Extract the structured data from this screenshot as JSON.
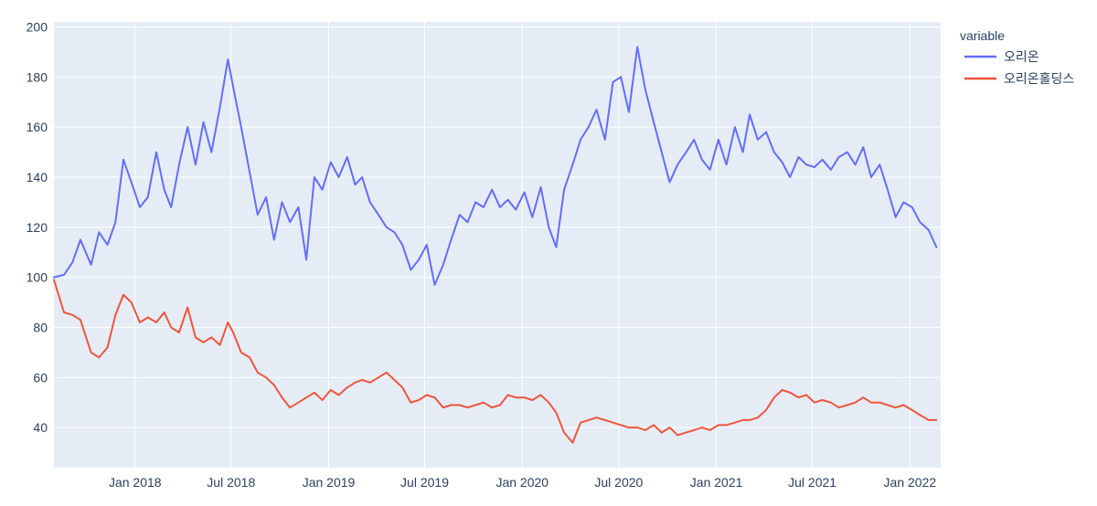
{
  "chart_data": {
    "type": "line",
    "title": "",
    "xlabel": "",
    "ylabel": "",
    "ylim": [
      24,
      202
    ],
    "y_ticks": [
      40,
      60,
      80,
      100,
      120,
      140,
      160,
      180,
      200
    ],
    "y_tick_labels": [
      "40",
      "60",
      "80",
      "100",
      "120",
      "140",
      "160",
      "180",
      "200"
    ],
    "x_range": [
      "2017-08-01",
      "2022-02-28"
    ],
    "x_ticks": [
      "2018-01-01",
      "2018-07-01",
      "2019-01-01",
      "2019-07-01",
      "2020-01-01",
      "2020-07-01",
      "2021-01-01",
      "2021-07-01",
      "2022-01-01"
    ],
    "x_tick_labels": [
      "Jan 2018",
      "Jul 2018",
      "Jan 2019",
      "Jul 2019",
      "Jan 2020",
      "Jul 2020",
      "Jan 2021",
      "Jul 2021",
      "Jan 2022"
    ],
    "grid": true,
    "legend": {
      "title": "variable",
      "placement": "right"
    },
    "colors": {
      "plot_bg": "#e5ecf6",
      "grid": "#ffffff",
      "text": "#2a3f5f"
    },
    "series": [
      {
        "name": "오리온",
        "color": "#636efa",
        "x": [
          "2017-08-01",
          "2017-08-20",
          "2017-09-05",
          "2017-09-20",
          "2017-10-10",
          "2017-10-25",
          "2017-11-10",
          "2017-11-25",
          "2017-12-10",
          "2017-12-25",
          "2018-01-10",
          "2018-01-25",
          "2018-02-10",
          "2018-02-25",
          "2018-03-10",
          "2018-03-25",
          "2018-04-10",
          "2018-04-25",
          "2018-05-10",
          "2018-05-25",
          "2018-06-10",
          "2018-06-25",
          "2018-07-05",
          "2018-07-20",
          "2018-08-05",
          "2018-08-20",
          "2018-09-05",
          "2018-09-20",
          "2018-10-05",
          "2018-10-20",
          "2018-11-05",
          "2018-11-20",
          "2018-12-05",
          "2018-12-20",
          "2019-01-05",
          "2019-01-20",
          "2019-02-05",
          "2019-02-20",
          "2019-03-05",
          "2019-03-20",
          "2019-04-05",
          "2019-04-20",
          "2019-05-05",
          "2019-05-20",
          "2019-06-05",
          "2019-06-20",
          "2019-07-05",
          "2019-07-20",
          "2019-08-05",
          "2019-08-20",
          "2019-09-05",
          "2019-09-20",
          "2019-10-05",
          "2019-10-20",
          "2019-11-05",
          "2019-11-20",
          "2019-12-05",
          "2019-12-20",
          "2020-01-05",
          "2020-01-20",
          "2020-02-05",
          "2020-02-20",
          "2020-03-05",
          "2020-03-20",
          "2020-04-05",
          "2020-04-20",
          "2020-05-05",
          "2020-05-20",
          "2020-06-05",
          "2020-06-20",
          "2020-07-05",
          "2020-07-20",
          "2020-08-05",
          "2020-08-20",
          "2020-09-05",
          "2020-09-20",
          "2020-10-05",
          "2020-10-20",
          "2020-11-05",
          "2020-11-20",
          "2020-12-05",
          "2020-12-20",
          "2021-01-05",
          "2021-01-20",
          "2021-02-05",
          "2021-02-20",
          "2021-03-05",
          "2021-03-20",
          "2021-04-05",
          "2021-04-20",
          "2021-05-05",
          "2021-05-20",
          "2021-06-05",
          "2021-06-20",
          "2021-07-05",
          "2021-07-20",
          "2021-08-05",
          "2021-08-20",
          "2021-09-05",
          "2021-09-20",
          "2021-10-05",
          "2021-10-20",
          "2021-11-05",
          "2021-11-20",
          "2021-12-05",
          "2021-12-20",
          "2022-01-05",
          "2022-01-20",
          "2022-02-05",
          "2022-02-20"
        ],
        "values": [
          100,
          101,
          106,
          115,
          105,
          118,
          113,
          122,
          147,
          138,
          128,
          132,
          150,
          135,
          128,
          145,
          160,
          145,
          162,
          150,
          168,
          187,
          176,
          160,
          142,
          125,
          132,
          115,
          130,
          122,
          128,
          107,
          140,
          135,
          146,
          140,
          148,
          137,
          140,
          130,
          125,
          120,
          118,
          113,
          103,
          107,
          113,
          97,
          105,
          115,
          125,
          122,
          130,
          128,
          135,
          128,
          131,
          127,
          134,
          124,
          136,
          120,
          112,
          135,
          145,
          155,
          160,
          167,
          155,
          178,
          180,
          166,
          192,
          175,
          162,
          150,
          138,
          145,
          150,
          155,
          147,
          143,
          155,
          145,
          160,
          150,
          165,
          155,
          158,
          150,
          146,
          140,
          148,
          145,
          144,
          147,
          143,
          148,
          150,
          145,
          152,
          140,
          145,
          135,
          124,
          130,
          128,
          122,
          119,
          112
        ]
      },
      {
        "name": "오리온홀딩스",
        "color": "#ef553b",
        "x": [
          "2017-08-01",
          "2017-08-20",
          "2017-09-05",
          "2017-09-20",
          "2017-10-10",
          "2017-10-25",
          "2017-11-10",
          "2017-11-25",
          "2017-12-10",
          "2017-12-25",
          "2018-01-10",
          "2018-01-25",
          "2018-02-10",
          "2018-02-25",
          "2018-03-10",
          "2018-03-25",
          "2018-04-10",
          "2018-04-25",
          "2018-05-10",
          "2018-05-25",
          "2018-06-10",
          "2018-06-25",
          "2018-07-05",
          "2018-07-20",
          "2018-08-05",
          "2018-08-20",
          "2018-09-05",
          "2018-09-20",
          "2018-10-05",
          "2018-10-20",
          "2018-11-05",
          "2018-11-20",
          "2018-12-05",
          "2018-12-20",
          "2019-01-05",
          "2019-01-20",
          "2019-02-05",
          "2019-02-20",
          "2019-03-05",
          "2019-03-20",
          "2019-04-05",
          "2019-04-20",
          "2019-05-05",
          "2019-05-20",
          "2019-06-05",
          "2019-06-20",
          "2019-07-05",
          "2019-07-20",
          "2019-08-05",
          "2019-08-20",
          "2019-09-05",
          "2019-09-20",
          "2019-10-05",
          "2019-10-20",
          "2019-11-05",
          "2019-11-20",
          "2019-12-05",
          "2019-12-20",
          "2020-01-05",
          "2020-01-20",
          "2020-02-05",
          "2020-02-20",
          "2020-03-05",
          "2020-03-20",
          "2020-04-05",
          "2020-04-20",
          "2020-05-05",
          "2020-05-20",
          "2020-06-05",
          "2020-06-20",
          "2020-07-05",
          "2020-07-20",
          "2020-08-05",
          "2020-08-20",
          "2020-09-05",
          "2020-09-20",
          "2020-10-05",
          "2020-10-20",
          "2020-11-05",
          "2020-11-20",
          "2020-12-05",
          "2020-12-20",
          "2021-01-05",
          "2021-01-20",
          "2021-02-05",
          "2021-02-20",
          "2021-03-05",
          "2021-03-20",
          "2021-04-05",
          "2021-04-20",
          "2021-05-05",
          "2021-05-20",
          "2021-06-05",
          "2021-06-20",
          "2021-07-05",
          "2021-07-20",
          "2021-08-05",
          "2021-08-20",
          "2021-09-05",
          "2021-09-20",
          "2021-10-05",
          "2021-10-20",
          "2021-11-05",
          "2021-11-20",
          "2021-12-05",
          "2021-12-20",
          "2022-01-05",
          "2022-01-20",
          "2022-02-05",
          "2022-02-20"
        ],
        "values": [
          99,
          86,
          85,
          83,
          70,
          68,
          72,
          85,
          93,
          90,
          82,
          84,
          82,
          86,
          80,
          78,
          88,
          76,
          74,
          76,
          73,
          82,
          78,
          70,
          68,
          62,
          60,
          57,
          52,
          48,
          50,
          52,
          54,
          51,
          55,
          53,
          56,
          58,
          59,
          58,
          60,
          62,
          59,
          56,
          50,
          51,
          53,
          52,
          48,
          49,
          49,
          48,
          49,
          50,
          48,
          49,
          53,
          52,
          52,
          51,
          53,
          50,
          46,
          38,
          34,
          42,
          43,
          44,
          43,
          42,
          41,
          40,
          40,
          39,
          41,
          38,
          40,
          37,
          38,
          39,
          40,
          39,
          41,
          41,
          42,
          43,
          43,
          44,
          47,
          52,
          55,
          54,
          52,
          53,
          50,
          51,
          50,
          48,
          49,
          50,
          52,
          50,
          50,
          49,
          48,
          49,
          47,
          45,
          43,
          43
        ]
      }
    ]
  }
}
